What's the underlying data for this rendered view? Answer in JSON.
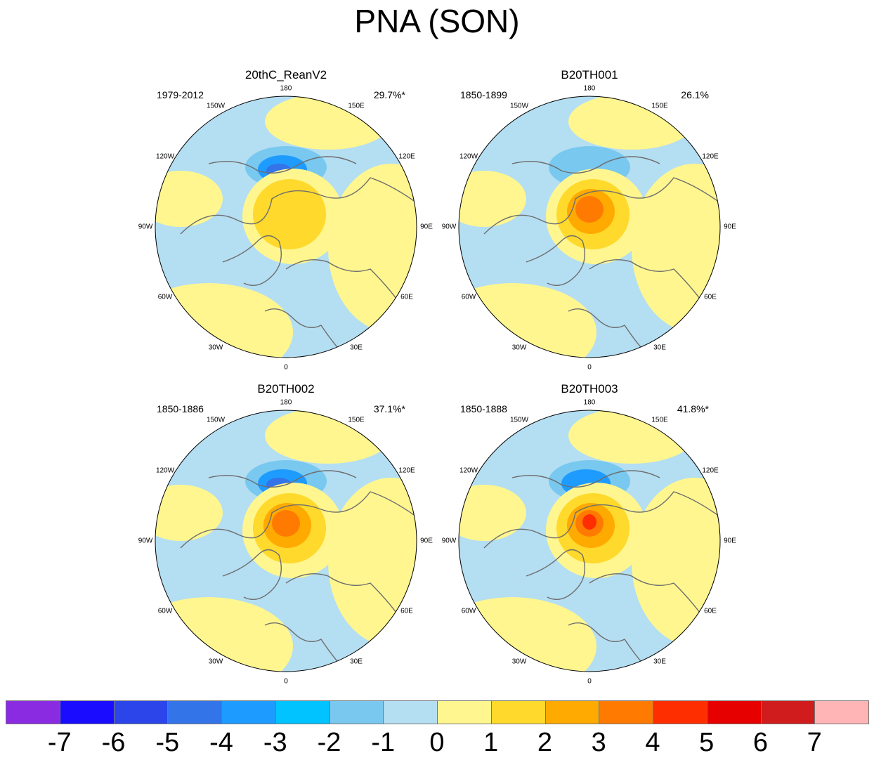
{
  "title": "PNA (SON)",
  "panels": [
    {
      "name": "20thC_ReanV2",
      "period": "1979-2012",
      "variance": "29.7%*",
      "anomalies": [
        [
          -1,
          -2,
          -3,
          -4
        ],
        [
          1,
          2
        ]
      ]
    },
    {
      "name": "B20TH001",
      "period": "1850-1899",
      "variance": "26.1%",
      "anomalies": [
        [
          -1,
          -2
        ],
        [
          1,
          2,
          3,
          4
        ]
      ]
    },
    {
      "name": "B20TH002",
      "period": "1850-1886",
      "variance": "37.1%*",
      "anomalies": [
        [
          -1,
          -2,
          -3,
          -4
        ],
        [
          1,
          2,
          3,
          4
        ]
      ]
    },
    {
      "name": "B20TH003",
      "period": "1850-1888",
      "variance": "41.8%*",
      "anomalies": [
        [
          -1,
          -2,
          -3
        ],
        [
          1,
          2,
          3,
          4,
          5
        ]
      ]
    }
  ],
  "longitude_labels": [
    "180",
    "150E",
    "120E",
    "90E",
    "60E",
    "30E",
    "0",
    "30W",
    "60W",
    "90W",
    "120W",
    "150W"
  ],
  "colorbar": {
    "colors": [
      "#8a2be2",
      "#1a0dff",
      "#2b45ea",
      "#3374e8",
      "#1e9bff",
      "#00c3ff",
      "#78c8f0",
      "#b4def2",
      "#fff68f",
      "#ffd92b",
      "#ffaa00",
      "#ff7a00",
      "#ff2e00",
      "#e60000",
      "#d01c1c",
      "#ffb5b5"
    ],
    "labels": [
      "-7",
      "-6",
      "-5",
      "-4",
      "-3",
      "-2",
      "-1",
      "0",
      "1",
      "2",
      "3",
      "4",
      "5",
      "6",
      "7"
    ]
  },
  "palette": {
    "land_outline": "#6e6e6e",
    "background": "#ffffff"
  }
}
